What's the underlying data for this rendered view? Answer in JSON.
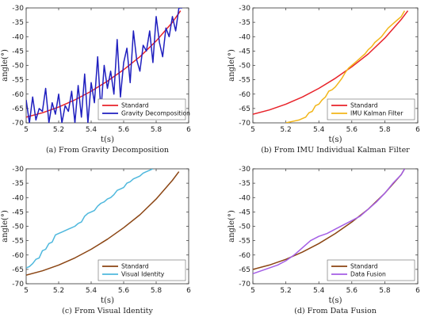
{
  "figure": {
    "background": "#ffffff"
  },
  "chart_data": [
    {
      "type": "line",
      "caption": "(a) From Gravity Decomposition",
      "xlabel": "t(s)",
      "ylabel": "angle(°)",
      "xlim": [
        5,
        6
      ],
      "ylim": [
        -70,
        -30
      ],
      "xticks": [
        "5",
        "5.2",
        "5.4",
        "5.6",
        "5.8",
        "6"
      ],
      "yticks": [
        "-30",
        "-35",
        "-40",
        "-45",
        "-50",
        "-55",
        "-60",
        "-65",
        "-70"
      ],
      "grid": false,
      "legend_position": "bottom-right",
      "series": [
        {
          "name": "Standard",
          "color": "#e8232a",
          "x": [
            5.0,
            5.1,
            5.2,
            5.3,
            5.4,
            5.5,
            5.6,
            5.7,
            5.8,
            5.9,
            5.95
          ],
          "y": [
            -68,
            -66.5,
            -64.5,
            -62,
            -59,
            -55.5,
            -51.5,
            -47,
            -41.5,
            -35,
            -31
          ]
        },
        {
          "name": "Gravity Decomposition",
          "color": "#1f1fbf",
          "x": [
            5.0,
            5.02,
            5.04,
            5.06,
            5.08,
            5.1,
            5.12,
            5.14,
            5.16,
            5.18,
            5.2,
            5.22,
            5.24,
            5.26,
            5.28,
            5.3,
            5.32,
            5.34,
            5.36,
            5.38,
            5.4,
            5.42,
            5.44,
            5.46,
            5.48,
            5.5,
            5.52,
            5.54,
            5.56,
            5.58,
            5.6,
            5.62,
            5.64,
            5.66,
            5.68,
            5.7,
            5.72,
            5.74,
            5.76,
            5.78,
            5.8,
            5.82,
            5.84,
            5.86,
            5.88,
            5.9,
            5.92,
            5.94,
            5.96
          ],
          "y": [
            -62,
            -70,
            -61,
            -69,
            -65,
            -66,
            -58,
            -70,
            -63,
            -67,
            -60,
            -70,
            -64,
            -66,
            -59,
            -70,
            -57,
            -68,
            -53,
            -70,
            -56,
            -63,
            -47,
            -66,
            -50,
            -58,
            -52,
            -60,
            -41,
            -61,
            -49,
            -44,
            -56,
            -38,
            -48,
            -52,
            -43,
            -45,
            -38,
            -49,
            -33,
            -42,
            -47,
            -37,
            -40,
            -33,
            -38,
            -30,
            -30
          ]
        }
      ]
    },
    {
      "type": "line",
      "caption": "(b) From IMU Individual Kalman Filter",
      "xlabel": "t(s)",
      "ylabel": "angle(°)",
      "xlim": [
        5,
        6
      ],
      "ylim": [
        -70,
        -30
      ],
      "xticks": [
        "5",
        "5.2",
        "5.4",
        "5.6",
        "5.8",
        "6"
      ],
      "yticks": [
        "-30",
        "-35",
        "-40",
        "-45",
        "-50",
        "-55",
        "-60",
        "-65",
        "-70"
      ],
      "grid": false,
      "legend_position": "bottom-right",
      "series": [
        {
          "name": "Standard",
          "color": "#e8232a",
          "x": [
            5.0,
            5.1,
            5.2,
            5.3,
            5.4,
            5.5,
            5.6,
            5.7,
            5.8,
            5.9,
            5.94
          ],
          "y": [
            -67,
            -65.5,
            -63.5,
            -61,
            -58,
            -54.5,
            -50.5,
            -46,
            -40.5,
            -34,
            -31
          ]
        },
        {
          "name": "IMU Kalman Filter",
          "color": "#f2b619",
          "x": [
            5.2,
            5.24,
            5.28,
            5.3,
            5.32,
            5.34,
            5.36,
            5.38,
            5.4,
            5.42,
            5.44,
            5.46,
            5.48,
            5.5,
            5.52,
            5.54,
            5.56,
            5.58,
            5.6,
            5.62,
            5.64,
            5.66,
            5.68,
            5.7,
            5.72,
            5.74,
            5.76,
            5.78,
            5.8,
            5.82,
            5.84,
            5.86,
            5.88,
            5.9,
            5.92
          ],
          "y": [
            -70,
            -69.5,
            -69,
            -68.5,
            -68,
            -66.5,
            -66,
            -64,
            -63.5,
            -62,
            -61,
            -59,
            -58.5,
            -57.5,
            -56,
            -54.5,
            -52.5,
            -51,
            -50,
            -49,
            -48,
            -47,
            -46,
            -44.5,
            -43.5,
            -42,
            -41,
            -40,
            -38.5,
            -37,
            -36,
            -35,
            -34,
            -33,
            -31
          ]
        }
      ]
    },
    {
      "type": "line",
      "caption": "(c) From Visual Identity",
      "xlabel": "t(s)",
      "ylabel": "angle(°)",
      "xlim": [
        5,
        6
      ],
      "ylim": [
        -70,
        -30
      ],
      "xticks": [
        "5",
        "5.2",
        "5.4",
        "5.6",
        "5.8",
        "6"
      ],
      "yticks": [
        "-30",
        "-35",
        "-40",
        "-45",
        "-50",
        "-55",
        "-60",
        "-65",
        "-70"
      ],
      "grid": false,
      "legend_position": "bottom-right",
      "series": [
        {
          "name": "Standard",
          "color": "#8b4513",
          "x": [
            5.0,
            5.1,
            5.2,
            5.3,
            5.4,
            5.5,
            5.6,
            5.7,
            5.8,
            5.9,
            5.94
          ],
          "y": [
            -67,
            -65.5,
            -63.5,
            -61,
            -58,
            -54.5,
            -50.5,
            -46,
            -40.5,
            -34,
            -31
          ]
        },
        {
          "name": "Visual Identity",
          "color": "#4fb8dd",
          "x": [
            5.0,
            5.02,
            5.04,
            5.06,
            5.08,
            5.1,
            5.12,
            5.14,
            5.16,
            5.18,
            5.2,
            5.22,
            5.24,
            5.26,
            5.28,
            5.3,
            5.32,
            5.34,
            5.36,
            5.38,
            5.4,
            5.42,
            5.44,
            5.46,
            5.48,
            5.5,
            5.52,
            5.54,
            5.56,
            5.58,
            5.6,
            5.62,
            5.64,
            5.66,
            5.68,
            5.7,
            5.72,
            5.74,
            5.76,
            5.78
          ],
          "y": [
            -64.5,
            -64,
            -63,
            -61.5,
            -61,
            -58.5,
            -58,
            -56,
            -55.5,
            -53,
            -52.5,
            -52,
            -51.5,
            -51,
            -50.5,
            -50,
            -49,
            -48.5,
            -46.5,
            -45.5,
            -45,
            -44.5,
            -43,
            -42,
            -41.5,
            -40.5,
            -40,
            -39,
            -37.5,
            -37,
            -36.5,
            -35,
            -34.5,
            -33.5,
            -33,
            -32.5,
            -31.5,
            -31,
            -30.5,
            -30
          ]
        }
      ]
    },
    {
      "type": "line",
      "caption": "(d) From Data Fusion",
      "xlabel": "t(s)",
      "ylabel": "angle(°)",
      "xlim": [
        5,
        6
      ],
      "ylim": [
        -70,
        -30
      ],
      "xticks": [
        "5",
        "5.2",
        "5.4",
        "5.6",
        "5.8",
        "6"
      ],
      "yticks": [
        "-30",
        "-35",
        "-40",
        "-45",
        "-50",
        "-55",
        "-60",
        "-65",
        "-70"
      ],
      "grid": false,
      "legend_position": "bottom-right",
      "series": [
        {
          "name": "Standard",
          "color": "#8b4513",
          "x": [
            5.0,
            5.1,
            5.2,
            5.3,
            5.4,
            5.5,
            5.6,
            5.7,
            5.8,
            5.9,
            5.92
          ],
          "y": [
            -65,
            -63.5,
            -61.5,
            -59,
            -56,
            -52.5,
            -48.5,
            -44,
            -38.5,
            -32,
            -30
          ]
        },
        {
          "name": "Data Fusion",
          "color": "#a45ee5",
          "x": [
            5.0,
            5.05,
            5.1,
            5.15,
            5.2,
            5.25,
            5.3,
            5.35,
            5.4,
            5.45,
            5.5,
            5.55,
            5.6,
            5.65,
            5.7,
            5.75,
            5.8,
            5.85,
            5.9,
            5.92
          ],
          "y": [
            -66.5,
            -65.5,
            -64.5,
            -63.5,
            -62,
            -60,
            -57.5,
            -55,
            -53.5,
            -52.5,
            -51,
            -49.5,
            -48,
            -46.5,
            -44,
            -41.5,
            -38.5,
            -35,
            -32,
            -30
          ]
        }
      ]
    }
  ]
}
